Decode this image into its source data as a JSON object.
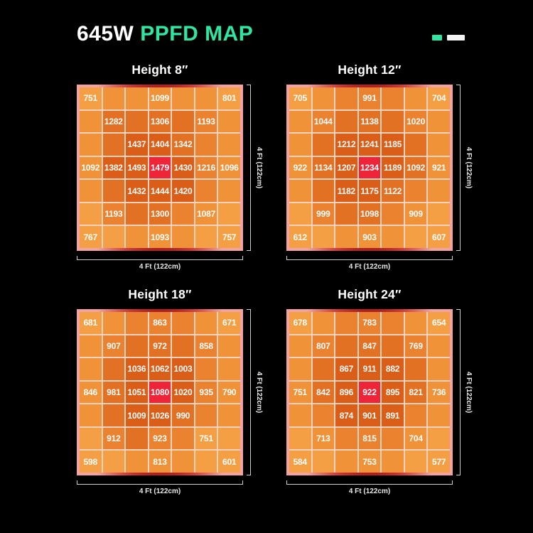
{
  "header": {
    "title_wattage": "645W",
    "title_rest": "PPFD MAP",
    "accent_green": "#2FE5A1",
    "dash_white": "#F2F2F2"
  },
  "axis": {
    "x_label": "4 Ft (122cm)",
    "y_label": "4 Ft (122cm)"
  },
  "colors": {
    "scale_low_to_high": [
      "#F59F45",
      "#F09238",
      "#EA8230",
      "#E37124",
      "#DA5E17"
    ],
    "hotspot_red": "#EE2438",
    "gridline": "#F7D3BF",
    "frame_inner_red": "#A01010",
    "frame_outer_pink": "#F2A2A2",
    "background": "#000000",
    "value_text": "#FFFFFF"
  },
  "chart_data": [
    {
      "type": "heatmap",
      "title": "Height 8″",
      "rows": 7,
      "cols": 7,
      "x_label": "4 Ft (122cm)",
      "y_label": "4 Ft (122cm)",
      "values": [
        [
          751,
          null,
          null,
          1099,
          null,
          null,
          801
        ],
        [
          null,
          1282,
          null,
          1306,
          null,
          1193,
          null
        ],
        [
          null,
          null,
          1437,
          1404,
          1342,
          null,
          null
        ],
        [
          1092,
          1382,
          1493,
          1479,
          1430,
          1216,
          1096
        ],
        [
          null,
          null,
          1432,
          1444,
          1420,
          null,
          null
        ],
        [
          null,
          1193,
          null,
          1300,
          null,
          1087,
          null
        ],
        [
          767,
          null,
          null,
          1093,
          null,
          null,
          757
        ]
      ]
    },
    {
      "type": "heatmap",
      "title": "Height 12″",
      "rows": 7,
      "cols": 7,
      "x_label": "4 Ft (122cm)",
      "y_label": "4 Ft (122cm)",
      "values": [
        [
          705,
          null,
          null,
          991,
          null,
          null,
          704
        ],
        [
          null,
          1044,
          null,
          1138,
          null,
          1020,
          null
        ],
        [
          null,
          null,
          1212,
          1241,
          1185,
          null,
          null
        ],
        [
          922,
          1134,
          1207,
          1234,
          1189,
          1092,
          921
        ],
        [
          null,
          null,
          1182,
          1175,
          1122,
          null,
          null
        ],
        [
          null,
          999,
          null,
          1098,
          null,
          909,
          null
        ],
        [
          612,
          null,
          null,
          903,
          null,
          null,
          607
        ]
      ]
    },
    {
      "type": "heatmap",
      "title": "Height 18″",
      "rows": 7,
      "cols": 7,
      "x_label": "4 Ft (122cm)",
      "y_label": "4 Ft (122cm)",
      "values": [
        [
          681,
          null,
          null,
          863,
          null,
          null,
          671
        ],
        [
          null,
          907,
          null,
          972,
          null,
          858,
          null
        ],
        [
          null,
          null,
          1036,
          1062,
          1003,
          null,
          null
        ],
        [
          846,
          981,
          1051,
          1080,
          1020,
          935,
          790
        ],
        [
          null,
          null,
          1009,
          1026,
          990,
          null,
          null
        ],
        [
          null,
          912,
          null,
          923,
          null,
          751,
          null
        ],
        [
          598,
          null,
          null,
          813,
          null,
          null,
          601
        ]
      ]
    },
    {
      "type": "heatmap",
      "title": "Height 24″",
      "rows": 7,
      "cols": 7,
      "x_label": "4 Ft (122cm)",
      "y_label": "4 Ft (122cm)",
      "values": [
        [
          678,
          null,
          null,
          783,
          null,
          null,
          654
        ],
        [
          null,
          807,
          null,
          847,
          null,
          769,
          null
        ],
        [
          null,
          null,
          867,
          911,
          882,
          null,
          null
        ],
        [
          751,
          842,
          896,
          922,
          895,
          821,
          736
        ],
        [
          null,
          null,
          874,
          901,
          891,
          null,
          null
        ],
        [
          null,
          713,
          null,
          815,
          null,
          704,
          null
        ],
        [
          584,
          null,
          null,
          753,
          null,
          null,
          577
        ]
      ]
    }
  ]
}
